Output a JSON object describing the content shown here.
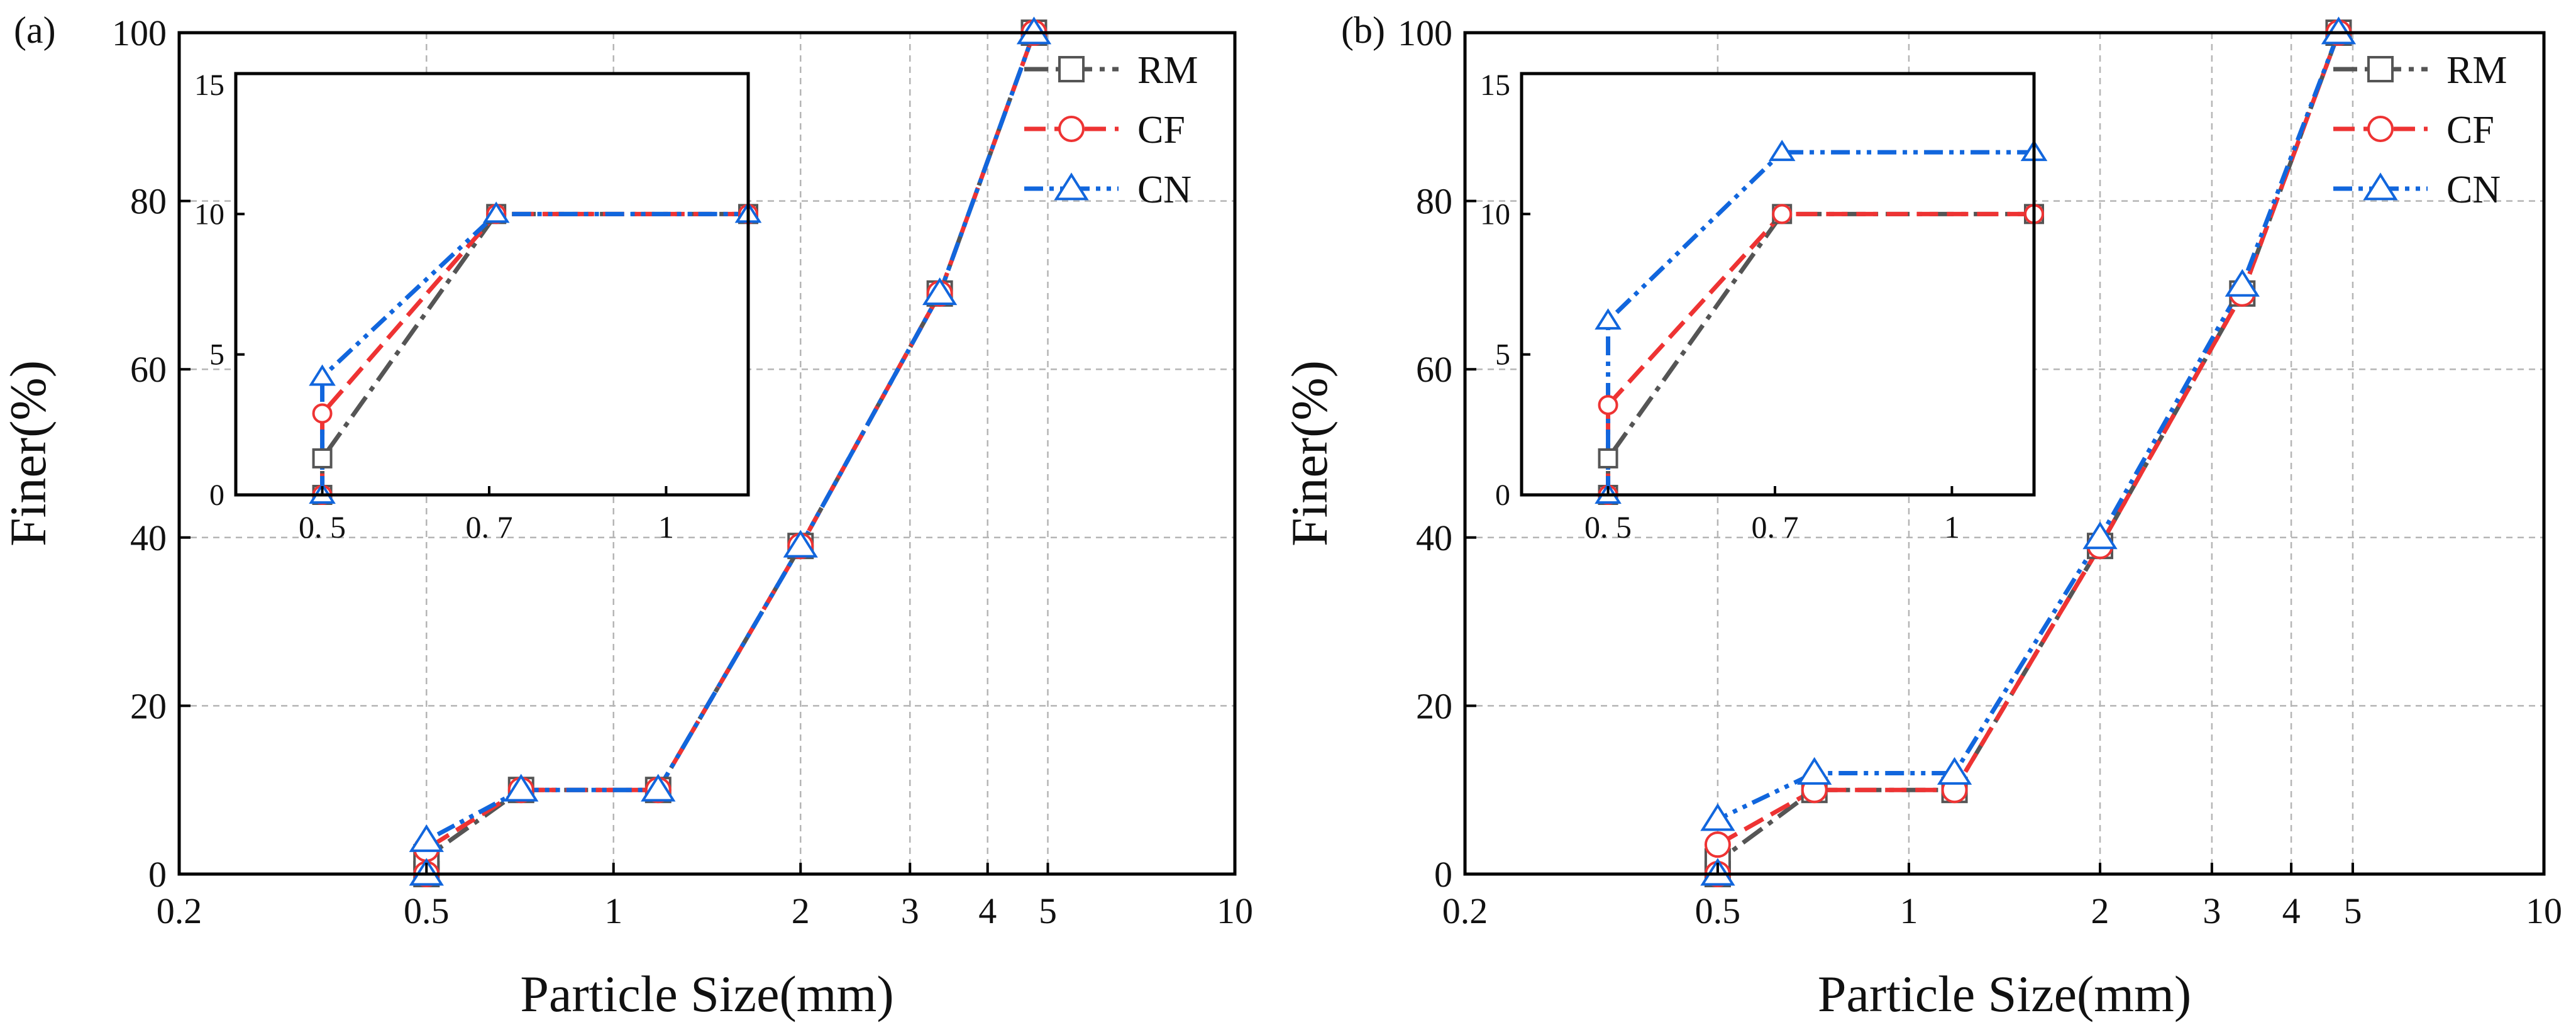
{
  "colors": {
    "RM": "#555555",
    "CF": "#ee3333",
    "CN": "#1166dd"
  },
  "chart_data": [
    {
      "type": "line",
      "panel_label": "(a)",
      "xlabel": "Particle Size(mm)",
      "ylabel": "Finer(%)",
      "xscale": "log",
      "xlim": [
        0.2,
        10
      ],
      "ylim": [
        0,
        100
      ],
      "xticks": [
        0.2,
        0.5,
        1,
        2,
        3,
        4,
        5,
        10
      ],
      "xtick_labels": [
        "0.2",
        "0.5",
        "1",
        "2",
        "3",
        "4",
        "5",
        "10"
      ],
      "yticks": [
        0,
        20,
        40,
        60,
        80,
        100
      ],
      "ytick_labels": [
        "0",
        "20",
        "40",
        "60",
        "80",
        "100"
      ],
      "grid": true,
      "legend_position": "top-right",
      "x": [
        0.5,
        0.5,
        0.71,
        1.18,
        2.0,
        3.35,
        4.75
      ],
      "series": [
        {
          "name": "RM",
          "marker": "square",
          "line_style": "dash-dot",
          "values": [
            0,
            2,
            10,
            10,
            39,
            69,
            100
          ]
        },
        {
          "name": "CF",
          "marker": "circle",
          "line_style": "dash",
          "values": [
            0,
            3,
            10,
            10,
            39,
            69,
            100
          ]
        },
        {
          "name": "CN",
          "marker": "triangle",
          "line_style": "dash-dot-dot",
          "values": [
            0,
            4,
            10,
            10,
            39,
            69,
            100
          ]
        }
      ],
      "inset": {
        "xlim": [
          0.42,
          1.18
        ],
        "ylim": [
          0,
          15
        ],
        "xticks": [
          0.5,
          0.7,
          1
        ],
        "xtick_labels": [
          "0. 5",
          "0. 7",
          "1"
        ],
        "yticks": [
          0,
          5,
          10,
          15
        ],
        "ytick_labels": [
          "0",
          "5",
          "10",
          "15"
        ],
        "x": [
          0.5,
          0.5,
          0.71,
          1.18
        ],
        "series": [
          {
            "name": "RM",
            "values": [
              0,
              1.3,
              10,
              10
            ]
          },
          {
            "name": "CF",
            "values": [
              0,
              2.9,
              10,
              10
            ]
          },
          {
            "name": "CN",
            "values": [
              0,
              4.2,
              10,
              10
            ]
          }
        ]
      }
    },
    {
      "type": "line",
      "panel_label": "(b)",
      "xlabel": "Particle Size(mm)",
      "ylabel": "Finer(%)",
      "xscale": "log",
      "xlim": [
        0.2,
        10
      ],
      "ylim": [
        0,
        100
      ],
      "xticks": [
        0.2,
        0.5,
        1,
        2,
        3,
        4,
        5,
        10
      ],
      "xtick_labels": [
        "0.2",
        "0.5",
        "1",
        "2",
        "3",
        "4",
        "5",
        "10"
      ],
      "yticks": [
        0,
        20,
        40,
        60,
        80,
        100
      ],
      "ytick_labels": [
        "0",
        "20",
        "40",
        "60",
        "80",
        "100"
      ],
      "grid": true,
      "legend_position": "top-right",
      "x": [
        0.5,
        0.5,
        0.71,
        1.18,
        2.0,
        3.35,
        4.75
      ],
      "series": [
        {
          "name": "RM",
          "marker": "square",
          "line_style": "dash-dot",
          "values": [
            0,
            1.5,
            10,
            10,
            39,
            69,
            100
          ]
        },
        {
          "name": "CF",
          "marker": "circle",
          "line_style": "dash",
          "values": [
            0,
            3.5,
            10,
            10,
            39,
            69,
            100
          ]
        },
        {
          "name": "CN",
          "marker": "triangle",
          "line_style": "dash-dot-dot",
          "values": [
            0,
            6.5,
            12,
            12,
            40,
            70,
            100
          ]
        }
      ],
      "inset": {
        "xlim": [
          0.42,
          1.18
        ],
        "ylim": [
          0,
          15
        ],
        "xticks": [
          0.5,
          0.7,
          1
        ],
        "xtick_labels": [
          "0. 5",
          "0. 7",
          "1"
        ],
        "yticks": [
          0,
          5,
          10,
          15
        ],
        "ytick_labels": [
          "0",
          "5",
          "10",
          "15"
        ],
        "x": [
          0.5,
          0.5,
          0.71,
          1.18
        ],
        "series": [
          {
            "name": "RM",
            "values": [
              0,
              1.3,
              10,
              10
            ]
          },
          {
            "name": "CF",
            "values": [
              0,
              3.2,
              10,
              10
            ]
          },
          {
            "name": "CN",
            "values": [
              0,
              6.2,
              12.2,
              12.2
            ]
          }
        ]
      }
    }
  ]
}
